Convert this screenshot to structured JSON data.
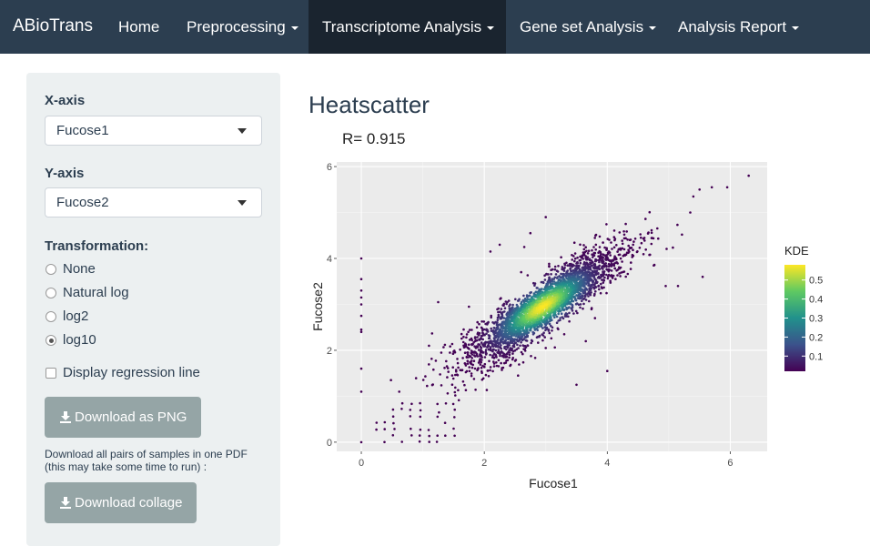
{
  "navbar": {
    "brand": "ABioTrans",
    "items": [
      {
        "label": "Home",
        "dropdown": false,
        "active": false
      },
      {
        "label": "Preprocessing",
        "dropdown": true,
        "active": false
      },
      {
        "label": "Transcriptome Analysis",
        "dropdown": true,
        "active": true
      },
      {
        "label": "Gene set Analysis",
        "dropdown": true,
        "active": false
      },
      {
        "label": "Analysis Report",
        "dropdown": true,
        "active": false
      }
    ]
  },
  "sidebar": {
    "x_axis_label": "X-axis",
    "x_axis_value": "Fucose1",
    "y_axis_label": "Y-axis",
    "y_axis_value": "Fucose2",
    "transformation_label": "Transformation:",
    "transformations": [
      {
        "label": "None",
        "selected": false
      },
      {
        "label": "Natural log",
        "selected": false
      },
      {
        "label": "log2",
        "selected": false
      },
      {
        "label": "log10",
        "selected": true
      }
    ],
    "regression_label": "Display regression line",
    "regression_checked": false,
    "download_png_label": "Download as PNG",
    "pdf_note_line1": "Download all pairs of samples in one PDF",
    "pdf_note_line2": "(this may take some time to run) :",
    "download_collage_label": "Download collage"
  },
  "main": {
    "title": "Heatscatter",
    "correlation_text": "R= 0.915"
  },
  "chart_data": {
    "type": "scatter",
    "title": "",
    "xlabel": "Fucose1",
    "ylabel": "Fucose2",
    "xlim": [
      -0.4,
      6.6
    ],
    "ylim": [
      -0.2,
      6.1
    ],
    "xticks": [
      0,
      2,
      4,
      6
    ],
    "yticks": [
      0,
      2,
      4,
      6
    ],
    "grid": true,
    "background": "#ebebeb",
    "color_by": "KDE",
    "colorbar": {
      "title": "KDE",
      "ticks": [
        0.1,
        0.2,
        0.3,
        0.4,
        0.5
      ],
      "range": [
        0.02,
        0.58
      ],
      "colors": [
        "#440154",
        "#3b528b",
        "#21918c",
        "#5ec962",
        "#fde725"
      ]
    },
    "correlation_r": 0.915,
    "density_core": {
      "center": [
        2.95,
        2.95
      ],
      "trend_slope": 1.0,
      "note_spread_along": 0.9,
      "spread_across": 0.18
    },
    "points": [
      [
        0,
        4.0
      ],
      [
        0,
        3.55
      ],
      [
        0,
        3.3
      ],
      [
        0,
        3.15
      ],
      [
        0,
        3.0
      ],
      [
        0,
        2.75
      ],
      [
        0,
        2.45
      ],
      [
        0,
        2.4
      ],
      [
        0,
        1.6
      ],
      [
        0,
        1.1
      ],
      [
        0,
        0
      ],
      [
        6.3,
        5.8
      ],
      [
        5.95,
        5.55
      ],
      [
        5.7,
        5.55
      ],
      [
        5.5,
        5.5
      ],
      [
        5.4,
        5.35
      ],
      [
        5.35,
        5.0
      ],
      [
        5.55,
        3.6
      ],
      [
        5.15,
        3.4
      ],
      [
        4.95,
        3.4
      ],
      [
        3.0,
        4.9
      ],
      [
        2.75,
        4.55
      ],
      [
        2.65,
        4.25
      ],
      [
        2.25,
        4.3
      ],
      [
        2.1,
        4.15
      ],
      [
        1.75,
        2.95
      ],
      [
        1.25,
        3.05
      ],
      [
        1.1,
        2.1
      ],
      [
        1.3,
        1.95
      ],
      [
        3.8,
        2.7
      ],
      [
        3.65,
        2.2
      ],
      [
        4.0,
        1.55
      ],
      [
        3.5,
        1.25
      ],
      [
        2.55,
        1.45
      ],
      [
        2.15,
        1.75
      ],
      [
        3.0,
        2.05
      ],
      [
        3.3,
        2.35
      ],
      [
        2.6,
        3.7
      ]
    ]
  }
}
